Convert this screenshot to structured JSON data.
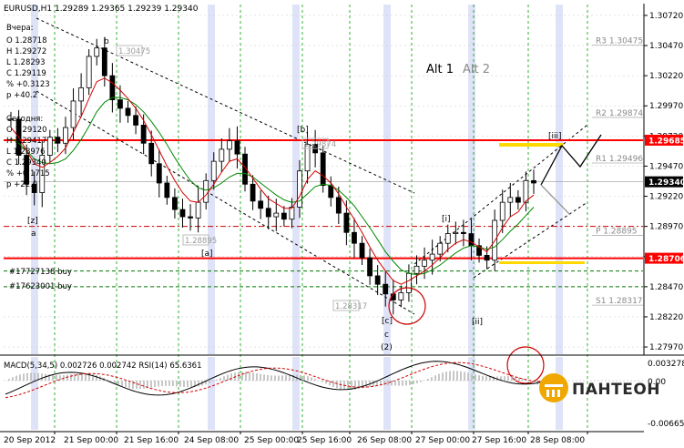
{
  "header": {
    "symbol_line": "EURUSD,H1   1.29289  1.29365  1.29239  1.29340",
    "yesterday_title": "Вчера:",
    "yesterday": [
      "O 1.28718",
      "H 1.29272",
      "L 1.28293",
      "C 1.29119",
      "% +0.3123",
      "p +40.2"
    ],
    "today_title": "Сегодня:",
    "today": [
      "O 1.29120",
      "H 1.29417",
      "L 1.28976",
      "C 1.29340",
      "% +0.1715",
      "p +22.0"
    ]
  },
  "alt_labels": {
    "alt1": "Alt 1",
    "alt2": "Alt 2"
  },
  "wave_labels": [
    {
      "text": "b",
      "color": "#cc0000"
    },
    {
      "text": "[b]",
      "color": "#007700"
    },
    {
      "text": "[z]",
      "color": "#007700"
    },
    {
      "text": "a",
      "color": "#cc0000"
    },
    {
      "text": "[a]",
      "color": "#007700"
    },
    {
      "text": "[i]",
      "color": "#007700"
    },
    {
      "text": "[iii]",
      "color": "#007700"
    },
    {
      "text": "[c]",
      "color": "#007700"
    },
    {
      "text": "c",
      "color": "#cc0000"
    },
    {
      "text": "(2)",
      "color": "#0000cc"
    },
    {
      "text": "[ii]",
      "color": "#007700"
    }
  ],
  "order_labels": [
    "#17727138 buy",
    "#17623001 buy"
  ],
  "price_tags": [
    {
      "text": "1.29685",
      "bg": "#ff0000",
      "fg": "#ffffff",
      "price": 1.29685
    },
    {
      "text": "1.29340",
      "bg": "#000000",
      "fg": "#ffffff",
      "price": 1.2934
    },
    {
      "text": "1.28706",
      "bg": "#ff0000",
      "fg": "#ffffff",
      "price": 1.28706
    }
  ],
  "level_labels": [
    {
      "text": "R3  1.30475",
      "price": 1.30475
    },
    {
      "text": "R2  1.29874",
      "price": 1.29874
    },
    {
      "text": "R1  1.29496",
      "price": 1.29496
    },
    {
      "text": "P  1.28895",
      "price": 1.28895
    },
    {
      "text": "S1  1.28317",
      "price": 1.28317
    }
  ],
  "box_labels": [
    "1.30475",
    "1.29874",
    "1.28895",
    "1.28317"
  ],
  "indicator_line": "MACD(5,34,5)  0.002726  0.002742   RSI(14)  65.6361",
  "indicator_axis": [
    "0.003278",
    "0.00",
    "-0.006650"
  ],
  "logo": "ПАНТЕОН",
  "colors": {
    "fast_ma": "#d40000",
    "slow_ma": "#008800",
    "candle": "#000000",
    "resistance": "#ff0000",
    "highlight": "#ffd800",
    "session_band": "#dfe3f7",
    "grid": "#00a000"
  },
  "chart_data": {
    "type": "line",
    "title": "EURUSD,H1",
    "y_ticks": [
      1.2797,
      1.2822,
      1.2847,
      1.2872,
      1.2897,
      1.2922,
      1.2947,
      1.2972,
      1.2997,
      1.3022,
      1.3047,
      1.3072
    ],
    "y_tick_labels": [
      "1.27970",
      "1.28220",
      "1.28470",
      "1.28720",
      "1.28970",
      "1.29220",
      "1.29470",
      "1.29720",
      "1.29970",
      "1.30220",
      "1.30470",
      "1.30720"
    ],
    "ylim": [
      1.2791,
      1.3081
    ],
    "x_labels": [
      "20 Sep 2012",
      "21 Sep 00:00",
      "21 Sep 16:00",
      "24 Sep 08:00",
      "25 Sep 00:00",
      "25 Sep 16:00",
      "26 Sep 08:00",
      "27 Sep 00:00",
      "27 Sep 16:00",
      "28 Sep 08:00"
    ],
    "close_series": [
      1.2986,
      1.2956,
      1.2932,
      1.2925,
      1.2956,
      1.2971,
      1.2966,
      1.2979,
      1.3001,
      1.3012,
      1.3038,
      1.3045,
      1.3022,
      1.3002,
      1.2995,
      1.2989,
      1.2981,
      1.2966,
      1.2949,
      1.2933,
      1.2921,
      1.2911,
      1.2905,
      1.2904,
      1.2917,
      1.2935,
      1.2951,
      1.2961,
      1.2968,
      1.2957,
      1.2932,
      1.2918,
      1.2912,
      1.2905,
      1.2908,
      1.2903,
      1.2913,
      1.2943,
      1.2965,
      1.2958,
      1.2931,
      1.2921,
      1.2908,
      1.2892,
      1.2883,
      1.2871,
      1.2856,
      1.2849,
      1.2841,
      1.2836,
      1.2842,
      1.2858,
      1.2864,
      1.2869,
      1.2874,
      1.2883,
      1.2891,
      1.2892,
      1.2891,
      1.2881,
      1.2873,
      1.2869,
      1.2902,
      1.2917,
      1.2921,
      1.2917,
      1.2935,
      1.2933
    ],
    "fast_ma": [
      1.2979,
      1.2971,
      1.296,
      1.2949,
      1.2946,
      1.295,
      1.2955,
      1.2962,
      1.2975,
      1.2988,
      1.3003,
      1.3017,
      1.302,
      1.3016,
      1.301,
      1.3003,
      1.2995,
      1.2985,
      1.2973,
      1.296,
      1.2947,
      1.2935,
      1.2925,
      1.2918,
      1.2917,
      1.2923,
      1.2932,
      1.2942,
      1.2951,
      1.2953,
      1.2946,
      1.2937,
      1.2928,
      1.292,
      1.2916,
      1.2912,
      1.2912,
      1.2922,
      1.2936,
      1.2943,
      1.2939,
      1.2933,
      1.2924,
      1.2913,
      1.2903,
      1.2892,
      1.288,
      1.2869,
      1.286,
      1.2852,
      1.2849,
      1.2852,
      1.2856,
      1.286,
      1.2865,
      1.2871,
      1.2878,
      1.2883,
      1.2886,
      1.2884,
      1.288,
      1.2876,
      1.2885,
      1.2896,
      1.2905,
      1.2909,
      1.2918,
      1.2923
    ],
    "slow_ma": [
      1.297,
      1.2966,
      1.296,
      1.2953,
      1.295,
      1.2949,
      1.295,
      1.2953,
      1.296,
      1.2969,
      1.298,
      1.2992,
      1.3,
      1.3004,
      1.3004,
      1.3002,
      1.2998,
      1.2992,
      1.2984,
      1.2975,
      1.2965,
      1.2954,
      1.2944,
      1.2935,
      1.2929,
      1.2927,
      1.2929,
      1.2933,
      1.2938,
      1.2941,
      1.2941,
      1.2938,
      1.2933,
      1.2928,
      1.2923,
      1.2919,
      1.2917,
      1.2918,
      1.2924,
      1.293,
      1.2932,
      1.2931,
      1.2927,
      1.2921,
      1.2914,
      1.2905,
      1.2896,
      1.2886,
      1.2876,
      1.2868,
      1.2861,
      1.2858,
      1.2857,
      1.2858,
      1.2861,
      1.2865,
      1.287,
      1.2875,
      1.2879,
      1.2881,
      1.288,
      1.2878,
      1.288,
      1.2886,
      1.2893,
      1.2899,
      1.2906,
      1.2913
    ],
    "horizontal_levels": [
      1.29685,
      1.28706
    ],
    "pivot_levels": {
      "R3": 1.30475,
      "R2": 1.29874,
      "R1": 1.29496,
      "P": 1.28895,
      "S1": 1.28317
    },
    "macd": {
      "ylim": [
        -0.00665,
        0.003278
      ],
      "zero": 0.0
    }
  }
}
